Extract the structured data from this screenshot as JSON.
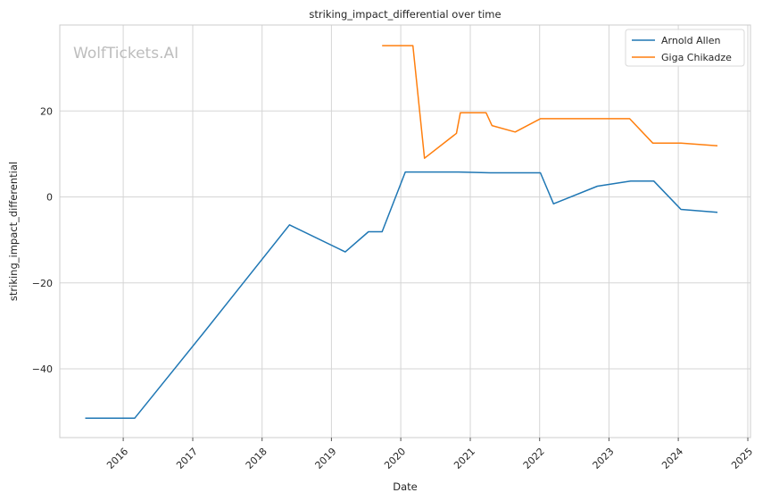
{
  "chart_data": {
    "type": "line",
    "title": "striking_impact_differential over time",
    "xlabel": "Date",
    "ylabel": "striking_impact_differential",
    "watermark": "WolfTickets.AI",
    "x_axis": "date",
    "xlim": [
      "2015-02-01",
      "2025-01-15"
    ],
    "ylim": [
      -56,
      40
    ],
    "grid": true,
    "legend_position": "top-right",
    "x_ticks": [
      {
        "value": "2016-01-01",
        "label": "2016"
      },
      {
        "value": "2017-01-01",
        "label": "2017"
      },
      {
        "value": "2018-01-01",
        "label": "2018"
      },
      {
        "value": "2019-01-01",
        "label": "2019"
      },
      {
        "value": "2020-01-01",
        "label": "2020"
      },
      {
        "value": "2021-01-01",
        "label": "2021"
      },
      {
        "value": "2022-01-01",
        "label": "2022"
      },
      {
        "value": "2023-01-01",
        "label": "2023"
      },
      {
        "value": "2024-01-01",
        "label": "2024"
      },
      {
        "value": "2025-01-01",
        "label": "2025"
      }
    ],
    "y_ticks": [
      {
        "value": 20,
        "label": "20"
      },
      {
        "value": 0,
        "label": "0"
      },
      {
        "value": -20,
        "label": "−20"
      },
      {
        "value": -40,
        "label": "−40"
      }
    ],
    "series": [
      {
        "name": "Arnold Allen",
        "color": "#1f77b4",
        "points": [
          {
            "x": "2015-06-15",
            "y": -51.5
          },
          {
            "x": "2016-03-01",
            "y": -51.5
          },
          {
            "x": "2017-03-01",
            "y": -31.5
          },
          {
            "x": "2018-05-25",
            "y": -6.5
          },
          {
            "x": "2019-03-15",
            "y": -12.8
          },
          {
            "x": "2019-07-15",
            "y": -8.1
          },
          {
            "x": "2019-09-25",
            "y": -8.1
          },
          {
            "x": "2020-01-25",
            "y": 5.8
          },
          {
            "x": "2020-11-01",
            "y": 5.8
          },
          {
            "x": "2021-04-15",
            "y": 5.6
          },
          {
            "x": "2022-01-05",
            "y": 5.6
          },
          {
            "x": "2022-03-15",
            "y": -1.6
          },
          {
            "x": "2022-11-01",
            "y": 2.5
          },
          {
            "x": "2023-04-25",
            "y": 3.7
          },
          {
            "x": "2023-08-25",
            "y": 3.7
          },
          {
            "x": "2024-01-15",
            "y": -2.9
          },
          {
            "x": "2024-07-25",
            "y": -3.6
          }
        ]
      },
      {
        "name": "Giga Chikadze",
        "color": "#ff7f0e",
        "points": [
          {
            "x": "2019-09-25",
            "y": 35.2
          },
          {
            "x": "2020-03-05",
            "y": 35.2
          },
          {
            "x": "2020-05-05",
            "y": 9.0
          },
          {
            "x": "2020-10-20",
            "y": 14.8
          },
          {
            "x": "2020-11-10",
            "y": 19.6
          },
          {
            "x": "2021-03-25",
            "y": 19.6
          },
          {
            "x": "2021-04-25",
            "y": 16.6
          },
          {
            "x": "2021-08-25",
            "y": 15.1
          },
          {
            "x": "2022-01-05",
            "y": 18.2
          },
          {
            "x": "2023-04-20",
            "y": 18.2
          },
          {
            "x": "2023-08-20",
            "y": 12.5
          },
          {
            "x": "2024-01-15",
            "y": 12.5
          },
          {
            "x": "2024-07-25",
            "y": 11.9
          }
        ]
      }
    ]
  }
}
